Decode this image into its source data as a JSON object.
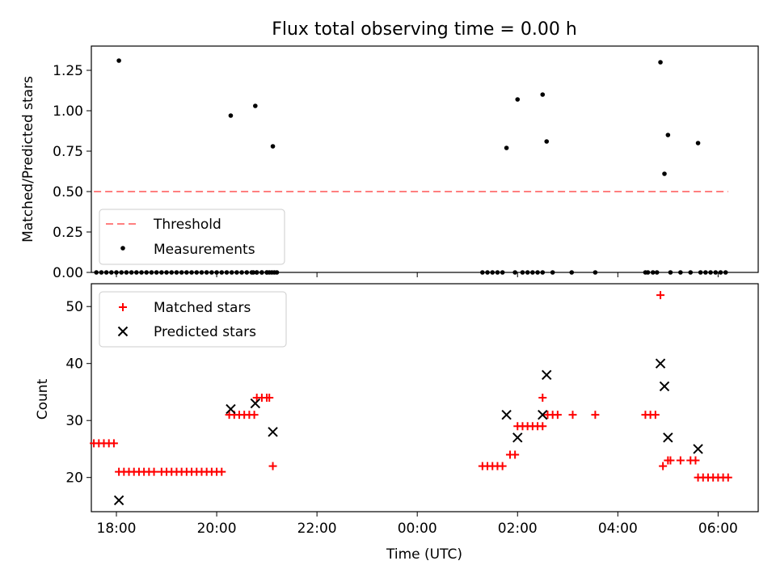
{
  "chart_data": [
    {
      "type": "scatter",
      "title": "Flux total observing time = 0.00 h",
      "ylabel": "Matched/Predicted stars",
      "xlabel": "",
      "xlim": [
        -6.5,
        6.8
      ],
      "ylim": [
        0,
        1.4
      ],
      "yticks": [
        0.0,
        0.25,
        0.5,
        0.75,
        1.0,
        1.25
      ],
      "ytick_labels": [
        "0.00",
        "0.25",
        "0.50",
        "0.75",
        "1.00",
        "1.25"
      ],
      "legend_position": "lower-left",
      "threshold": {
        "name": "Threshold",
        "value": 0.5,
        "x": [
          -6.45,
          6.2
        ],
        "color": "#ff7f7f"
      },
      "measurements": {
        "name": "Measurements",
        "color": "#000000",
        "points": [
          [
            -6.4,
            0
          ],
          [
            -6.3,
            0
          ],
          [
            -6.2,
            0
          ],
          [
            -6.1,
            0
          ],
          [
            -6.0,
            0
          ],
          [
            -5.95,
            1.31
          ],
          [
            -5.9,
            0
          ],
          [
            -5.8,
            0
          ],
          [
            -5.7,
            0
          ],
          [
            -5.6,
            0
          ],
          [
            -5.5,
            0
          ],
          [
            -5.4,
            0
          ],
          [
            -5.3,
            0
          ],
          [
            -5.2,
            0
          ],
          [
            -5.1,
            0
          ],
          [
            -5.0,
            0
          ],
          [
            -4.9,
            0
          ],
          [
            -4.8,
            0
          ],
          [
            -4.7,
            0
          ],
          [
            -4.6,
            0
          ],
          [
            -4.5,
            0
          ],
          [
            -4.4,
            0
          ],
          [
            -4.3,
            0
          ],
          [
            -4.2,
            0
          ],
          [
            -4.1,
            0
          ],
          [
            -4.0,
            0
          ],
          [
            -3.9,
            0
          ],
          [
            -3.8,
            0
          ],
          [
            -3.7,
            0
          ],
          [
            -3.6,
            0
          ],
          [
            -3.5,
            0
          ],
          [
            -3.4,
            0
          ],
          [
            -3.3,
            0
          ],
          [
            -3.2,
            0
          ],
          [
            -3.1,
            0
          ],
          [
            -3.0,
            0
          ],
          [
            -2.9,
            0
          ],
          [
            -2.8,
            0
          ],
          [
            -3.72,
            0.97
          ],
          [
            -3.27,
            0.0
          ],
          [
            -3.2,
            0
          ],
          [
            -3.1,
            0
          ],
          [
            -3.0,
            0
          ],
          [
            -3.23,
            1.03
          ],
          [
            -2.95,
            0
          ],
          [
            -2.85,
            0
          ],
          [
            -2.88,
            0.78
          ],
          [
            1.3,
            0
          ],
          [
            1.4,
            0
          ],
          [
            1.5,
            0
          ],
          [
            1.6,
            0
          ],
          [
            1.7,
            0
          ],
          [
            1.78,
            0.77
          ],
          [
            1.95,
            0
          ],
          [
            2.0,
            1.07
          ],
          [
            2.1,
            0
          ],
          [
            2.2,
            0
          ],
          [
            2.3,
            0
          ],
          [
            2.4,
            0
          ],
          [
            2.5,
            0
          ],
          [
            2.5,
            1.1
          ],
          [
            2.58,
            0.81
          ],
          [
            2.7,
            0
          ],
          [
            3.08,
            0
          ],
          [
            3.55,
            0
          ],
          [
            4.55,
            0
          ],
          [
            4.6,
            0
          ],
          [
            4.7,
            0
          ],
          [
            4.78,
            0
          ],
          [
            4.85,
            1.3
          ],
          [
            4.93,
            0.61
          ],
          [
            5.0,
            0.85
          ],
          [
            5.05,
            0
          ],
          [
            5.25,
            0
          ],
          [
            5.45,
            0
          ],
          [
            5.6,
            0.8
          ],
          [
            5.65,
            0
          ],
          [
            5.75,
            0
          ],
          [
            5.85,
            0
          ],
          [
            5.95,
            0
          ],
          [
            6.05,
            0
          ],
          [
            6.15,
            0
          ]
        ]
      },
      "legend": [
        "Threshold",
        "Measurements"
      ]
    },
    {
      "type": "scatter",
      "title": "",
      "ylabel": "Count",
      "xlabel": "Time (UTC)",
      "xlim": [
        -6.5,
        6.8
      ],
      "ylim": [
        14,
        54
      ],
      "yticks": [
        20,
        30,
        40,
        50
      ],
      "ytick_labels": [
        "20",
        "30",
        "40",
        "50"
      ],
      "xticks": [
        -6,
        -4,
        -2,
        0,
        2,
        4,
        6
      ],
      "xtick_labels": [
        "18:00",
        "20:00",
        "22:00",
        "00:00",
        "02:00",
        "04:00",
        "06:00"
      ],
      "legend_position": "top-left",
      "series": [
        {
          "name": "Matched stars",
          "marker": "plus",
          "color": "#ff0000",
          "points": [
            [
              -6.45,
              26
            ],
            [
              -6.35,
              26
            ],
            [
              -6.25,
              26
            ],
            [
              -6.15,
              26
            ],
            [
              -6.05,
              26
            ],
            [
              -5.95,
              21
            ],
            [
              -5.85,
              21
            ],
            [
              -5.75,
              21
            ],
            [
              -5.65,
              21
            ],
            [
              -5.55,
              21
            ],
            [
              -5.45,
              21
            ],
            [
              -5.35,
              21
            ],
            [
              -5.25,
              21
            ],
            [
              -5.1,
              21
            ],
            [
              -5.0,
              21
            ],
            [
              -4.9,
              21
            ],
            [
              -4.8,
              21
            ],
            [
              -4.7,
              21
            ],
            [
              -4.6,
              21
            ],
            [
              -4.5,
              21
            ],
            [
              -4.4,
              21
            ],
            [
              -4.3,
              21
            ],
            [
              -4.2,
              21
            ],
            [
              -4.1,
              21
            ],
            [
              -4.0,
              21
            ],
            [
              -3.9,
              21
            ],
            [
              -3.75,
              31
            ],
            [
              -3.65,
              31
            ],
            [
              -3.55,
              31
            ],
            [
              -3.45,
              31
            ],
            [
              -3.35,
              31
            ],
            [
              -3.25,
              31
            ],
            [
              -3.2,
              34
            ],
            [
              -3.1,
              34
            ],
            [
              -3.0,
              34
            ],
            [
              -2.95,
              34
            ],
            [
              -2.88,
              22
            ],
            [
              1.3,
              22
            ],
            [
              1.4,
              22
            ],
            [
              1.5,
              22
            ],
            [
              1.6,
              22
            ],
            [
              1.7,
              22
            ],
            [
              1.85,
              24
            ],
            [
              1.95,
              24
            ],
            [
              2.0,
              29
            ],
            [
              2.1,
              29
            ],
            [
              2.2,
              29
            ],
            [
              2.3,
              29
            ],
            [
              2.4,
              29
            ],
            [
              2.5,
              29
            ],
            [
              2.5,
              34
            ],
            [
              2.6,
              31
            ],
            [
              2.7,
              31
            ],
            [
              2.8,
              31
            ],
            [
              3.1,
              31
            ],
            [
              3.55,
              31
            ],
            [
              4.55,
              31
            ],
            [
              4.65,
              31
            ],
            [
              4.75,
              31
            ],
            [
              4.85,
              52
            ],
            [
              4.9,
              22
            ],
            [
              5.0,
              23
            ],
            [
              5.05,
              23
            ],
            [
              5.25,
              23
            ],
            [
              5.45,
              23
            ],
            [
              5.55,
              23
            ],
            [
              5.6,
              20
            ],
            [
              5.7,
              20
            ],
            [
              5.8,
              20
            ],
            [
              5.9,
              20
            ],
            [
              6.0,
              20
            ],
            [
              6.1,
              20
            ],
            [
              6.2,
              20
            ]
          ]
        },
        {
          "name": "Predicted stars",
          "marker": "x",
          "color": "#000000",
          "points": [
            [
              -5.95,
              16
            ],
            [
              -3.72,
              32
            ],
            [
              -3.23,
              33
            ],
            [
              -2.88,
              28
            ],
            [
              1.78,
              31
            ],
            [
              2.0,
              27
            ],
            [
              2.5,
              31
            ],
            [
              2.58,
              38
            ],
            [
              4.85,
              40
            ],
            [
              4.93,
              36
            ],
            [
              5.0,
              27
            ],
            [
              5.6,
              25
            ]
          ]
        }
      ]
    }
  ]
}
